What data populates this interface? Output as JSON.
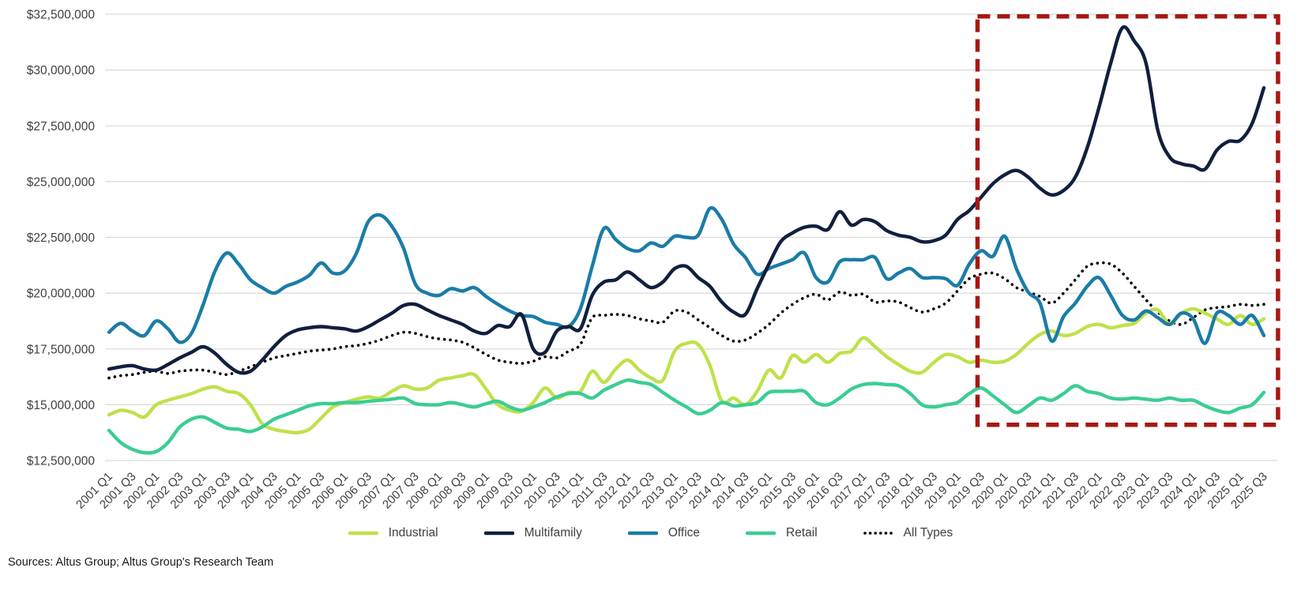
{
  "chart_data": {
    "type": "line",
    "title": "",
    "unit": "USD millions",
    "grid": "horizontal",
    "legend_position": "bottom",
    "y_axis": {
      "min_usd_millions": 12.5,
      "max_usd_millions": 32.5,
      "tick_values": [
        32.5,
        30,
        27.5,
        25,
        22.5,
        20,
        17.5,
        15,
        12.5
      ],
      "tick_labels": [
        "$32,500,000",
        "$30,000,000",
        "$27,500,000",
        "$25,000,000",
        "$22,500,000",
        "$20,000,000",
        "$17,500,000",
        "$15,000,000",
        "$12,500,000"
      ]
    },
    "x_axis": {
      "start": "2001 Q1",
      "end": "2025 Q3",
      "frequency": "quarterly",
      "tick_labels": [
        "2001 Q1",
        "2001 Q3",
        "2002 Q1",
        "2002 Q3",
        "2003 Q1",
        "2003 Q3",
        "2004 Q1",
        "2004 Q3",
        "2005 Q1",
        "2005 Q3",
        "2006 Q1",
        "2006 Q3",
        "2007 Q1",
        "2007 Q3",
        "2008 Q1",
        "2008 Q3",
        "2009 Q1",
        "2009 Q3",
        "2010 Q1",
        "2010 Q3",
        "2011 Q1",
        "2011 Q3",
        "2012 Q1",
        "2012 Q3",
        "2013 Q1",
        "2013 Q3",
        "2014 Q1",
        "2014 Q3",
        "2015 Q1",
        "2015 Q3",
        "2016 Q1",
        "2016 Q3",
        "2017 Q1",
        "2017 Q3",
        "2018 Q1",
        "2018 Q3",
        "2019 Q1",
        "2019 Q3",
        "2020 Q1",
        "2020 Q3",
        "2021 Q1",
        "2021 Q3",
        "2022 Q1",
        "2022 Q3",
        "2023 Q1",
        "2023 Q3",
        "2024 Q1",
        "2024 Q3",
        "2025 Q1",
        "2025 Q3"
      ]
    },
    "series": [
      {
        "name": "Industrial",
        "color": "#bfe14b",
        "style": "solid",
        "values": [
          14.55,
          14.75,
          14.65,
          14.45,
          15.0,
          15.2,
          15.35,
          15.5,
          15.7,
          15.8,
          15.6,
          15.5,
          15.0,
          14.15,
          13.9,
          13.8,
          13.75,
          13.9,
          14.4,
          14.9,
          15.1,
          15.25,
          15.35,
          15.3,
          15.6,
          15.85,
          15.7,
          15.75,
          16.1,
          16.2,
          16.3,
          16.35,
          15.7,
          15.0,
          14.75,
          14.7,
          15.1,
          15.75,
          15.3,
          15.55,
          15.6,
          16.5,
          16.0,
          16.6,
          17.0,
          16.55,
          16.2,
          16.1,
          17.4,
          17.75,
          17.7,
          16.75,
          15.15,
          15.3,
          15.0,
          15.6,
          16.55,
          16.2,
          17.2,
          16.9,
          17.25,
          16.9,
          17.3,
          17.4,
          18.0,
          17.6,
          17.15,
          16.8,
          16.5,
          16.45,
          16.9,
          17.25,
          17.15,
          16.9,
          17.0,
          16.9,
          16.95,
          17.25,
          17.75,
          18.15,
          18.3,
          18.1,
          18.2,
          18.5,
          18.6,
          18.45,
          18.55,
          18.65,
          19.1,
          19.25,
          18.6,
          19.1,
          19.3,
          19.1,
          18.85,
          18.6,
          19.0,
          18.6,
          18.85
        ]
      },
      {
        "name": "Multifamily",
        "color": "#111f3e",
        "style": "solid",
        "values": [
          16.6,
          16.7,
          16.75,
          16.6,
          16.55,
          16.8,
          17.1,
          17.35,
          17.6,
          17.3,
          16.8,
          16.45,
          16.5,
          17.0,
          17.6,
          18.1,
          18.35,
          18.45,
          18.5,
          18.45,
          18.4,
          18.3,
          18.5,
          18.8,
          19.1,
          19.45,
          19.5,
          19.25,
          19.0,
          18.8,
          18.6,
          18.3,
          18.2,
          18.55,
          18.5,
          19.05,
          17.5,
          17.35,
          18.3,
          18.5,
          18.4,
          19.9,
          20.5,
          20.6,
          20.95,
          20.6,
          20.25,
          20.5,
          21.1,
          21.2,
          20.7,
          20.3,
          19.6,
          19.15,
          19.05,
          20.2,
          21.3,
          22.3,
          22.7,
          22.95,
          23.0,
          22.85,
          23.65,
          23.05,
          23.3,
          23.2,
          22.8,
          22.6,
          22.5,
          22.3,
          22.35,
          22.6,
          23.3,
          23.7,
          24.3,
          24.9,
          25.3,
          25.5,
          25.2,
          24.7,
          24.4,
          24.6,
          25.2,
          26.5,
          28.3,
          30.3,
          31.9,
          31.3,
          30.3,
          27.3,
          26.1,
          25.8,
          25.7,
          25.55,
          26.4,
          26.8,
          26.85,
          27.6,
          29.2
        ]
      },
      {
        "name": "Office",
        "color": "#1a7ca7",
        "style": "solid",
        "values": [
          18.25,
          18.65,
          18.3,
          18.1,
          18.75,
          18.4,
          17.8,
          18.2,
          19.5,
          21.0,
          21.8,
          21.3,
          20.6,
          20.25,
          20.0,
          20.3,
          20.5,
          20.8,
          21.35,
          20.9,
          21.0,
          21.8,
          23.2,
          23.5,
          23.0,
          22.0,
          20.4,
          20.0,
          19.9,
          20.2,
          20.1,
          20.25,
          19.85,
          19.5,
          19.2,
          19.0,
          18.95,
          18.7,
          18.6,
          18.5,
          19.3,
          21.2,
          22.9,
          22.4,
          22.0,
          21.9,
          22.25,
          22.1,
          22.55,
          22.5,
          22.6,
          23.8,
          23.3,
          22.2,
          21.6,
          20.85,
          21.1,
          21.3,
          21.5,
          21.8,
          20.7,
          20.5,
          21.4,
          21.5,
          21.5,
          21.6,
          20.65,
          20.9,
          21.1,
          20.7,
          20.7,
          20.65,
          20.35,
          21.3,
          21.9,
          21.65,
          22.55,
          21.1,
          20.05,
          19.55,
          17.85,
          18.95,
          19.55,
          20.3,
          20.7,
          19.9,
          19.0,
          18.8,
          19.2,
          18.9,
          18.6,
          19.1,
          18.85,
          17.75,
          19.1,
          19.0,
          18.6,
          19.0,
          18.1
        ]
      },
      {
        "name": "Retail",
        "color": "#3bcd92",
        "style": "solid",
        "values": [
          13.85,
          13.3,
          13.0,
          12.85,
          12.9,
          13.3,
          14.0,
          14.35,
          14.45,
          14.2,
          13.95,
          13.9,
          13.8,
          14.0,
          14.35,
          14.55,
          14.75,
          14.95,
          15.05,
          15.05,
          15.1,
          15.1,
          15.15,
          15.2,
          15.25,
          15.3,
          15.05,
          15.0,
          15.0,
          15.1,
          15.0,
          14.9,
          15.05,
          15.15,
          14.9,
          14.75,
          14.9,
          15.1,
          15.35,
          15.5,
          15.5,
          15.3,
          15.65,
          15.9,
          16.1,
          16.0,
          15.9,
          15.55,
          15.2,
          14.9,
          14.6,
          14.75,
          15.1,
          14.95,
          15.0,
          15.1,
          15.55,
          15.6,
          15.6,
          15.6,
          15.1,
          15.0,
          15.3,
          15.7,
          15.9,
          15.95,
          15.9,
          15.85,
          15.5,
          15.0,
          14.9,
          15.0,
          15.1,
          15.5,
          15.75,
          15.4,
          15.0,
          14.65,
          14.95,
          15.3,
          15.2,
          15.5,
          15.85,
          15.6,
          15.5,
          15.3,
          15.25,
          15.3,
          15.25,
          15.2,
          15.3,
          15.2,
          15.2,
          14.95,
          14.75,
          14.65,
          14.85,
          15.0,
          15.55
        ]
      },
      {
        "name": "All Types",
        "color": "#000000",
        "style": "dotted",
        "values": [
          16.2,
          16.3,
          16.35,
          16.45,
          16.5,
          16.4,
          16.5,
          16.55,
          16.55,
          16.45,
          16.35,
          16.5,
          16.7,
          16.9,
          17.1,
          17.2,
          17.3,
          17.4,
          17.45,
          17.5,
          17.6,
          17.65,
          17.75,
          17.9,
          18.1,
          18.25,
          18.2,
          18.05,
          17.95,
          17.9,
          17.8,
          17.55,
          17.25,
          17.0,
          16.9,
          16.85,
          16.95,
          17.15,
          17.1,
          17.4,
          17.7,
          18.9,
          19.0,
          19.05,
          19.0,
          18.85,
          18.75,
          18.7,
          19.2,
          19.15,
          18.8,
          18.45,
          18.1,
          17.85,
          17.9,
          18.2,
          18.6,
          19.1,
          19.5,
          19.8,
          19.95,
          19.7,
          20.05,
          19.9,
          19.95,
          19.6,
          19.65,
          19.6,
          19.35,
          19.15,
          19.3,
          19.55,
          20.1,
          20.65,
          20.85,
          20.9,
          20.65,
          20.25,
          20.05,
          19.85,
          19.55,
          20.0,
          20.6,
          21.2,
          21.35,
          21.3,
          20.9,
          20.3,
          19.7,
          19.15,
          18.75,
          18.6,
          18.9,
          19.25,
          19.35,
          19.4,
          19.5,
          19.45,
          19.5
        ]
      }
    ],
    "annotation": {
      "type": "dashed-rectangle",
      "color": "#a61813",
      "x_from_quarter_index": 73.7,
      "x_to_quarter_index": 99.2,
      "y_from_usd_millions": 14.1,
      "y_to_usd_millions": 32.4
    }
  },
  "footer": {
    "sources": "Sources: Altus Group; Altus Group's Research Team"
  }
}
